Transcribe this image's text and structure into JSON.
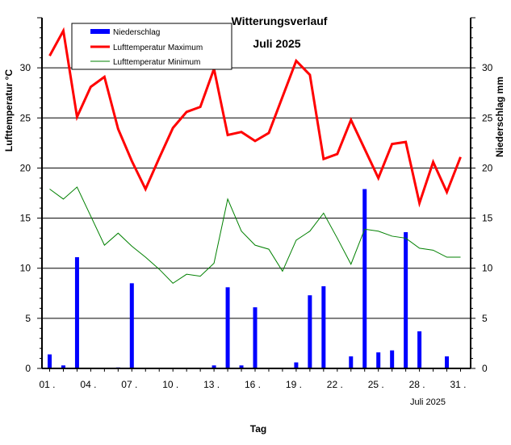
{
  "chart_data": {
    "type": "bar+line",
    "title": "Witterungsverlauf",
    "subtitle": "Juli 2025",
    "xlabel": "Tag",
    "ylabel_left": "Lufttemperatur °C",
    "ylabel_right": "Niederschlag  mm",
    "month_label": "Juli 2025",
    "ylim": [
      0,
      35
    ],
    "yticks": [
      0,
      5,
      10,
      15,
      20,
      25,
      30
    ],
    "x_tick_labels": [
      "01 .",
      "04 .",
      "07 .",
      "10 .",
      "13 .",
      "16 .",
      "19 .",
      "22 .",
      "25 .",
      "28 .",
      "31 ."
    ],
    "x_tick_days": [
      1,
      4,
      7,
      10,
      13,
      16,
      19,
      22,
      25,
      28,
      31
    ],
    "days": [
      1,
      2,
      3,
      4,
      5,
      6,
      7,
      8,
      9,
      10,
      11,
      12,
      13,
      14,
      15,
      16,
      17,
      18,
      19,
      20,
      21,
      22,
      23,
      24,
      25,
      26,
      27,
      28,
      29,
      30,
      31
    ],
    "legend": [
      {
        "name": "Niederschlag",
        "color": "#0000ff",
        "kind": "bar"
      },
      {
        "name": "Lufttemperatur Maximum",
        "color": "#ff0000",
        "kind": "line"
      },
      {
        "name": "Lufttemperatur Minimum",
        "color": "#008000",
        "kind": "line"
      }
    ],
    "series": [
      {
        "name": "Niederschlag",
        "color": "#0000ff",
        "values": [
          1.4,
          0.3,
          11.1,
          0,
          0,
          0.1,
          8.5,
          0,
          0,
          0,
          0,
          0,
          0.3,
          8.1,
          0.3,
          6.1,
          0,
          0,
          0.6,
          7.3,
          8.2,
          0,
          1.2,
          17.9,
          1.6,
          1.8,
          13.6,
          3.7,
          0,
          1.2,
          0
        ]
      },
      {
        "name": "Lufttemperatur Maximum",
        "color": "#ff0000",
        "values": [
          31.2,
          33.7,
          25.1,
          28.1,
          29.1,
          23.9,
          20.7,
          17.9,
          21.0,
          24.0,
          25.6,
          26.1,
          29.9,
          23.3,
          23.6,
          22.7,
          23.5,
          27.1,
          30.7,
          29.3,
          20.9,
          21.4,
          24.8,
          21.9,
          19.0,
          22.4,
          22.6,
          16.5,
          20.6,
          17.6,
          21.1
        ]
      },
      {
        "name": "Lufttemperatur Minimum",
        "color": "#008000",
        "values": [
          17.9,
          16.9,
          18.1,
          15.2,
          12.3,
          13.5,
          12.2,
          11.1,
          9.9,
          8.5,
          9.4,
          9.2,
          10.5,
          16.9,
          13.7,
          12.3,
          11.9,
          9.7,
          12.8,
          13.7,
          15.5,
          13.0,
          10.4,
          13.9,
          13.7,
          13.2,
          13.0,
          12.0,
          11.8,
          11.1,
          11.1
        ]
      }
    ]
  }
}
